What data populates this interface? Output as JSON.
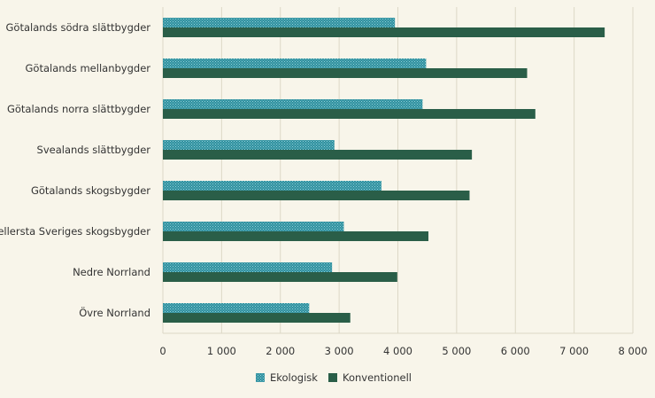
{
  "chart_data": {
    "type": "bar",
    "orientation": "horizontal",
    "categories": [
      "Götalands södra slättbygder",
      "Götalands mellanbygder",
      "Götalands norra slättbygder",
      "Svealands slättbygder",
      "Götalands skogsbygder",
      "Mellersta Sveriges skogsbygder",
      "Nedre Norrland",
      "Övre Norrland"
    ],
    "series": [
      {
        "name": "Ekologisk",
        "values": [
          3950,
          4480,
          4420,
          2920,
          3720,
          3080,
          2880,
          2490
        ]
      },
      {
        "name": "Konventionell",
        "values": [
          7520,
          6200,
          6340,
          5260,
          5220,
          4520,
          3990,
          3190
        ]
      }
    ],
    "xlim": [
      0,
      8000
    ],
    "xticks": [
      0,
      1000,
      2000,
      3000,
      4000,
      5000,
      6000,
      7000,
      8000
    ],
    "xtick_labels": [
      "0",
      "1 000",
      "2 000",
      "3 000",
      "4 000",
      "5 000",
      "6 000",
      "7 000",
      "8 000"
    ],
    "grid": "vertical",
    "legend_position": "bottom-center",
    "colors": {
      "Ekologisk": "#2e8f9e",
      "Konventionell": "#2a5e48",
      "grid": "#dcd8c6",
      "background": "#f8f5ea"
    }
  }
}
